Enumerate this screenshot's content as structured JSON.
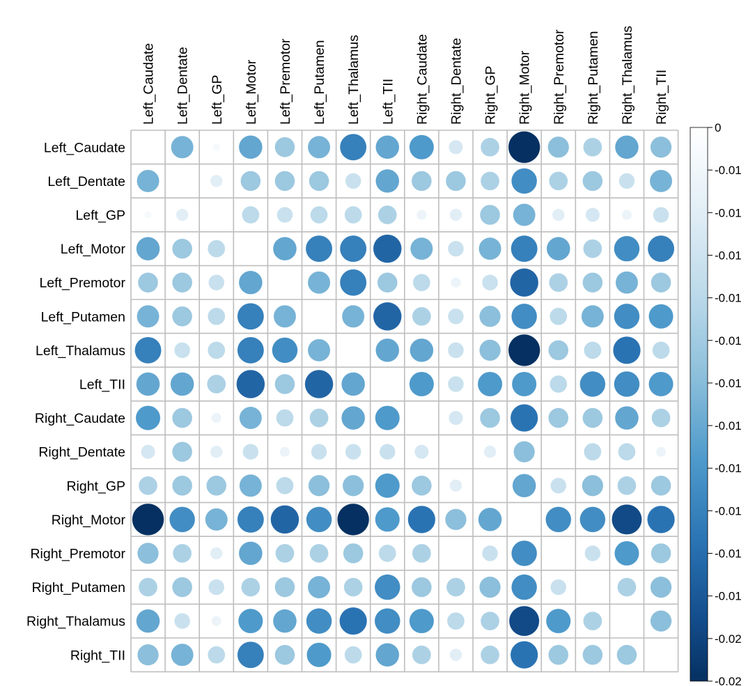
{
  "chart_data": {
    "type": "heatmap",
    "style": "correlation circle matrix",
    "labels": [
      "Left_Caudate",
      "Left_Dentate",
      "Left_GP",
      "Left_Motor",
      "Left_Premotor",
      "Left_Putamen",
      "Left_Thalamus",
      "Left_TII",
      "Right_Caudate",
      "Right_Dentate",
      "Right_GP",
      "Right_Motor",
      "Right_Premotor",
      "Right_Putamen",
      "Right_Thalamus",
      "Right_TII"
    ],
    "matrix": [
      [
        0,
        -0.01,
        -0.001,
        -0.011,
        -0.008,
        -0.01,
        -0.014,
        -0.011,
        -0.012,
        -0.004,
        -0.007,
        -0.02,
        -0.009,
        -0.007,
        -0.011,
        -0.009
      ],
      [
        -0.01,
        0,
        -0.003,
        -0.008,
        -0.008,
        -0.008,
        -0.005,
        -0.011,
        -0.008,
        -0.008,
        -0.007,
        -0.013,
        -0.007,
        -0.008,
        -0.005,
        -0.01
      ],
      [
        -0.001,
        -0.003,
        0,
        -0.006,
        -0.005,
        -0.006,
        -0.006,
        -0.007,
        -0.002,
        -0.003,
        -0.008,
        -0.01,
        -0.003,
        -0.004,
        -0.002,
        -0.005
      ],
      [
        -0.011,
        -0.008,
        -0.006,
        0,
        -0.011,
        -0.014,
        -0.014,
        -0.016,
        -0.01,
        -0.005,
        -0.01,
        -0.014,
        -0.011,
        -0.007,
        -0.013,
        -0.014
      ],
      [
        -0.008,
        -0.008,
        -0.005,
        -0.011,
        0,
        -0.01,
        -0.014,
        -0.008,
        -0.006,
        -0.002,
        -0.005,
        -0.016,
        -0.007,
        -0.008,
        -0.01,
        -0.008
      ],
      [
        -0.01,
        -0.008,
        -0.006,
        -0.014,
        -0.01,
        0,
        -0.01,
        -0.016,
        -0.007,
        -0.005,
        -0.009,
        -0.013,
        -0.006,
        -0.01,
        -0.013,
        -0.012
      ],
      [
        -0.014,
        -0.005,
        -0.006,
        -0.014,
        -0.013,
        -0.01,
        0,
        -0.011,
        -0.011,
        -0.005,
        -0.009,
        -0.02,
        -0.008,
        -0.006,
        -0.015,
        -0.006
      ],
      [
        -0.011,
        -0.011,
        -0.007,
        -0.016,
        -0.008,
        -0.016,
        -0.011,
        0,
        -0.012,
        -0.005,
        -0.012,
        -0.012,
        -0.006,
        -0.013,
        -0.013,
        -0.012
      ],
      [
        -0.012,
        -0.008,
        -0.002,
        -0.01,
        -0.006,
        -0.007,
        -0.011,
        -0.012,
        0,
        -0.004,
        -0.008,
        -0.015,
        -0.008,
        -0.008,
        -0.011,
        -0.007
      ],
      [
        -0.004,
        -0.008,
        -0.003,
        -0.005,
        -0.002,
        -0.005,
        -0.005,
        -0.005,
        -0.004,
        0,
        -0.003,
        -0.009,
        0,
        -0.006,
        -0.006,
        -0.002
      ],
      [
        -0.007,
        -0.008,
        -0.008,
        -0.01,
        -0.006,
        -0.009,
        -0.009,
        -0.012,
        -0.008,
        -0.003,
        0,
        -0.011,
        -0.005,
        -0.009,
        -0.007,
        -0.008
      ],
      [
        -0.02,
        -0.013,
        -0.01,
        -0.014,
        -0.016,
        -0.013,
        -0.02,
        -0.012,
        -0.015,
        -0.009,
        -0.011,
        0,
        -0.013,
        -0.013,
        -0.018,
        -0.015
      ],
      [
        -0.009,
        -0.007,
        -0.003,
        -0.011,
        -0.007,
        -0.007,
        -0.008,
        -0.006,
        -0.007,
        0,
        -0.005,
        -0.013,
        0,
        -0.005,
        -0.012,
        -0.008
      ],
      [
        -0.007,
        -0.008,
        -0.005,
        -0.007,
        -0.008,
        -0.01,
        -0.007,
        -0.013,
        -0.008,
        -0.007,
        -0.009,
        -0.013,
        -0.005,
        0,
        -0.007,
        -0.009
      ],
      [
        -0.011,
        -0.005,
        -0.002,
        -0.012,
        -0.011,
        -0.013,
        -0.015,
        -0.013,
        -0.012,
        -0.006,
        -0.007,
        -0.018,
        -0.012,
        -0.007,
        0,
        -0.009
      ],
      [
        -0.009,
        -0.01,
        -0.006,
        -0.014,
        -0.008,
        -0.012,
        -0.006,
        -0.011,
        -0.007,
        -0.003,
        -0.007,
        -0.015,
        -0.008,
        -0.008,
        -0.008,
        0
      ]
    ],
    "value_range": [
      -0.02,
      0
    ],
    "colorbar": {
      "tick_labels": [
        "0",
        "-0.01",
        "-0.01",
        "-0.01",
        "-0.01",
        "-0.01",
        "-0.01",
        "-0.01",
        "-0.01",
        "-0.01",
        "-0.01",
        "-0.01",
        "-0.02",
        "-0.02"
      ],
      "colors": {
        "low": "#053061",
        "mid": "#4393C3",
        "high": "#FFFFFF"
      }
    }
  }
}
